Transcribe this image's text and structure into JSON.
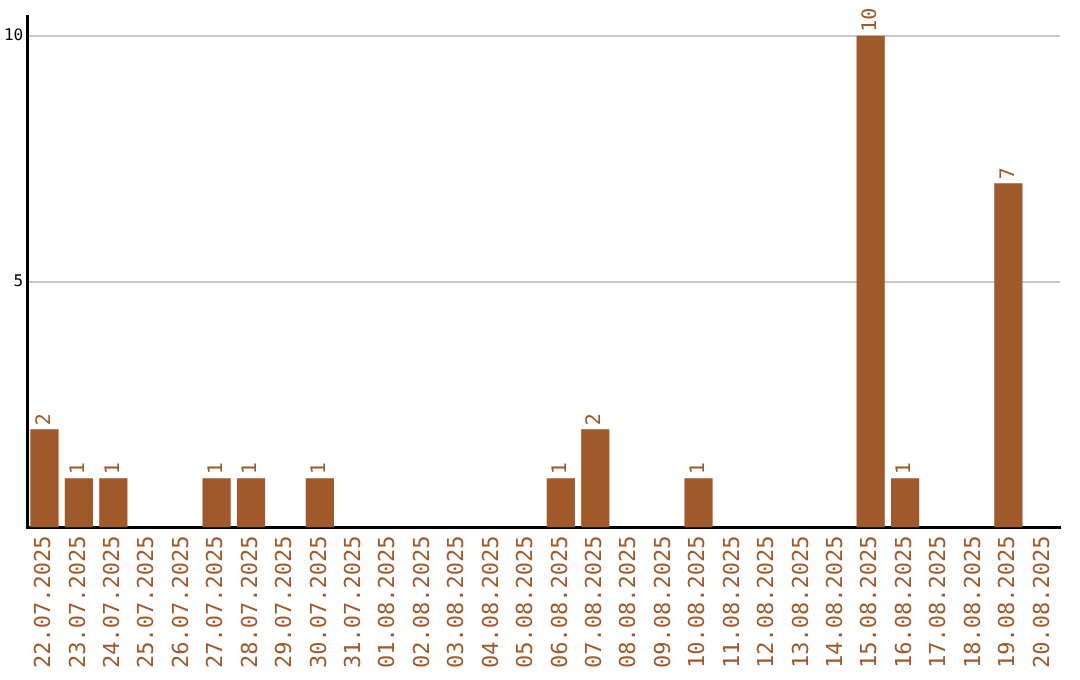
{
  "chart_data": {
    "type": "bar",
    "categories": [
      "22.07.2025",
      "23.07.2025",
      "24.07.2025",
      "25.07.2025",
      "26.07.2025",
      "27.07.2025",
      "28.07.2025",
      "29.07.2025",
      "30.07.2025",
      "31.07.2025",
      "01.08.2025",
      "02.08.2025",
      "03.08.2025",
      "04.08.2025",
      "05.08.2025",
      "06.08.2025",
      "07.08.2025",
      "08.08.2025",
      "09.08.2025",
      "10.08.2025",
      "11.08.2025",
      "12.08.2025",
      "13.08.2025",
      "14.08.2025",
      "15.08.2025",
      "16.08.2025",
      "17.08.2025",
      "18.08.2025",
      "19.08.2025",
      "20.08.2025"
    ],
    "values": [
      2,
      1,
      1,
      0,
      0,
      1,
      1,
      0,
      1,
      0,
      0,
      0,
      0,
      0,
      0,
      1,
      2,
      0,
      0,
      1,
      0,
      0,
      0,
      0,
      10,
      1,
      0,
      0,
      7,
      0
    ],
    "value_labels": [
      "2",
      "1",
      "1",
      null,
      null,
      "1",
      "1",
      null,
      "1",
      null,
      null,
      null,
      null,
      null,
      null,
      "1",
      "2",
      null,
      null,
      "1",
      null,
      null,
      null,
      null,
      "10",
      "1",
      null,
      null,
      "7",
      null
    ],
    "color": "#a0592a",
    "ylim": [
      0,
      10.4
    ],
    "yticks": [
      5,
      10
    ],
    "grid": "y",
    "legend": false
  }
}
